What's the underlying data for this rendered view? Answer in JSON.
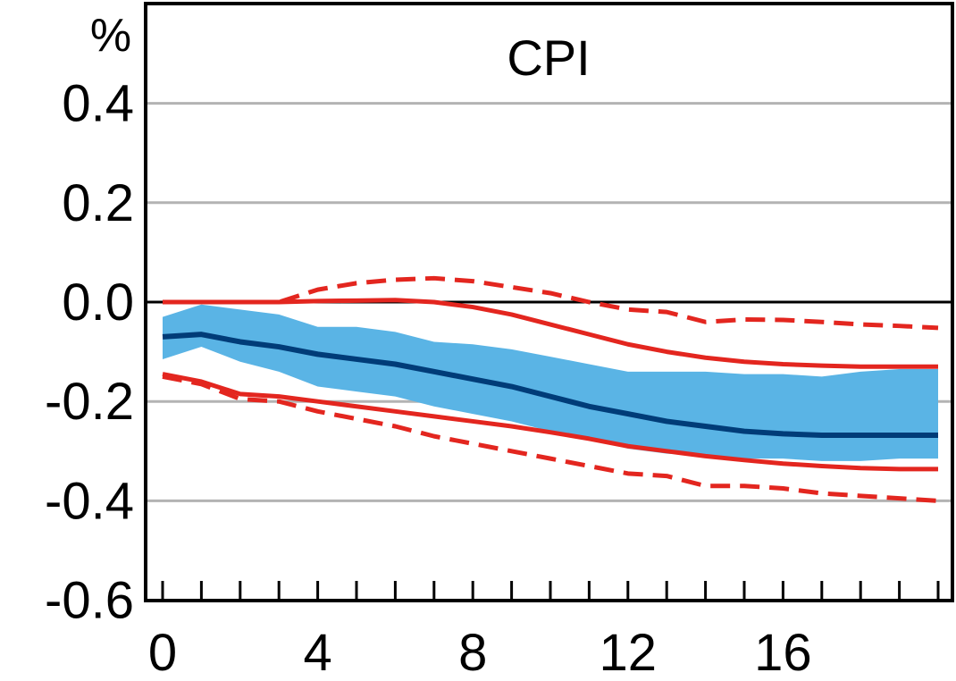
{
  "chart_data": {
    "type": "line",
    "title": "CPI",
    "ylabel": "%",
    "xlabel": "",
    "xlim": [
      0,
      20
    ],
    "ylim": [
      -0.6,
      0.6
    ],
    "xticks": [
      0,
      4,
      8,
      12,
      16
    ],
    "yticks": [
      0.4,
      0.2,
      0.0,
      -0.2,
      -0.4,
      -0.6
    ],
    "ytick_labels": [
      "0.4",
      "0.2",
      "0.0",
      "-0.2",
      "-0.4",
      "-0.6"
    ],
    "grid": true,
    "x": [
      0,
      1,
      2,
      3,
      4,
      5,
      6,
      7,
      8,
      9,
      10,
      11,
      12,
      13,
      14,
      15,
      16,
      17,
      18,
      19,
      20
    ],
    "band": {
      "color": "#5ab4e5",
      "upper": [
        -0.03,
        -0.005,
        -0.015,
        -0.025,
        -0.05,
        -0.05,
        -0.06,
        -0.08,
        -0.085,
        -0.095,
        -0.11,
        -0.125,
        -0.14,
        -0.14,
        -0.14,
        -0.145,
        -0.145,
        -0.15,
        -0.14,
        -0.135,
        -0.135
      ],
      "lower": [
        -0.115,
        -0.09,
        -0.12,
        -0.14,
        -0.17,
        -0.18,
        -0.19,
        -0.21,
        -0.225,
        -0.24,
        -0.26,
        -0.275,
        -0.295,
        -0.305,
        -0.31,
        -0.315,
        -0.315,
        -0.32,
        -0.32,
        -0.315,
        -0.315
      ]
    },
    "series": [
      {
        "style": "solid-thick",
        "color": "#003c78",
        "values": [
          -0.07,
          -0.065,
          -0.08,
          -0.09,
          -0.105,
          -0.115,
          -0.125,
          -0.14,
          -0.155,
          -0.17,
          -0.19,
          -0.21,
          -0.225,
          -0.24,
          -0.25,
          -0.26,
          -0.265,
          -0.268,
          -0.268,
          -0.268,
          -0.268
        ]
      },
      {
        "style": "solid",
        "color": "#e3261f",
        "values": [
          0.0,
          0.0,
          0.0,
          0.0,
          0.002,
          0.003,
          0.004,
          0.0,
          -0.01,
          -0.025,
          -0.045,
          -0.065,
          -0.085,
          -0.1,
          -0.112,
          -0.12,
          -0.125,
          -0.128,
          -0.13,
          -0.13,
          -0.13
        ]
      },
      {
        "style": "solid",
        "color": "#e3261f",
        "values": [
          -0.145,
          -0.16,
          -0.185,
          -0.19,
          -0.2,
          -0.21,
          -0.22,
          -0.23,
          -0.24,
          -0.25,
          -0.262,
          -0.275,
          -0.29,
          -0.3,
          -0.31,
          -0.318,
          -0.325,
          -0.33,
          -0.334,
          -0.336,
          -0.336
        ]
      },
      {
        "style": "dashed",
        "color": "#e3261f",
        "values": [
          0.0,
          0.0,
          0.0,
          0.0,
          0.025,
          0.038,
          0.045,
          0.048,
          0.042,
          0.03,
          0.018,
          0.0,
          -0.015,
          -0.02,
          -0.04,
          -0.035,
          -0.036,
          -0.04,
          -0.045,
          -0.048,
          -0.052
        ]
      },
      {
        "style": "dashed",
        "color": "#e3261f",
        "values": [
          -0.15,
          -0.165,
          -0.195,
          -0.2,
          -0.22,
          -0.235,
          -0.25,
          -0.27,
          -0.285,
          -0.3,
          -0.315,
          -0.33,
          -0.345,
          -0.35,
          -0.37,
          -0.37,
          -0.375,
          -0.385,
          -0.39,
          -0.395,
          -0.4
        ]
      }
    ]
  }
}
